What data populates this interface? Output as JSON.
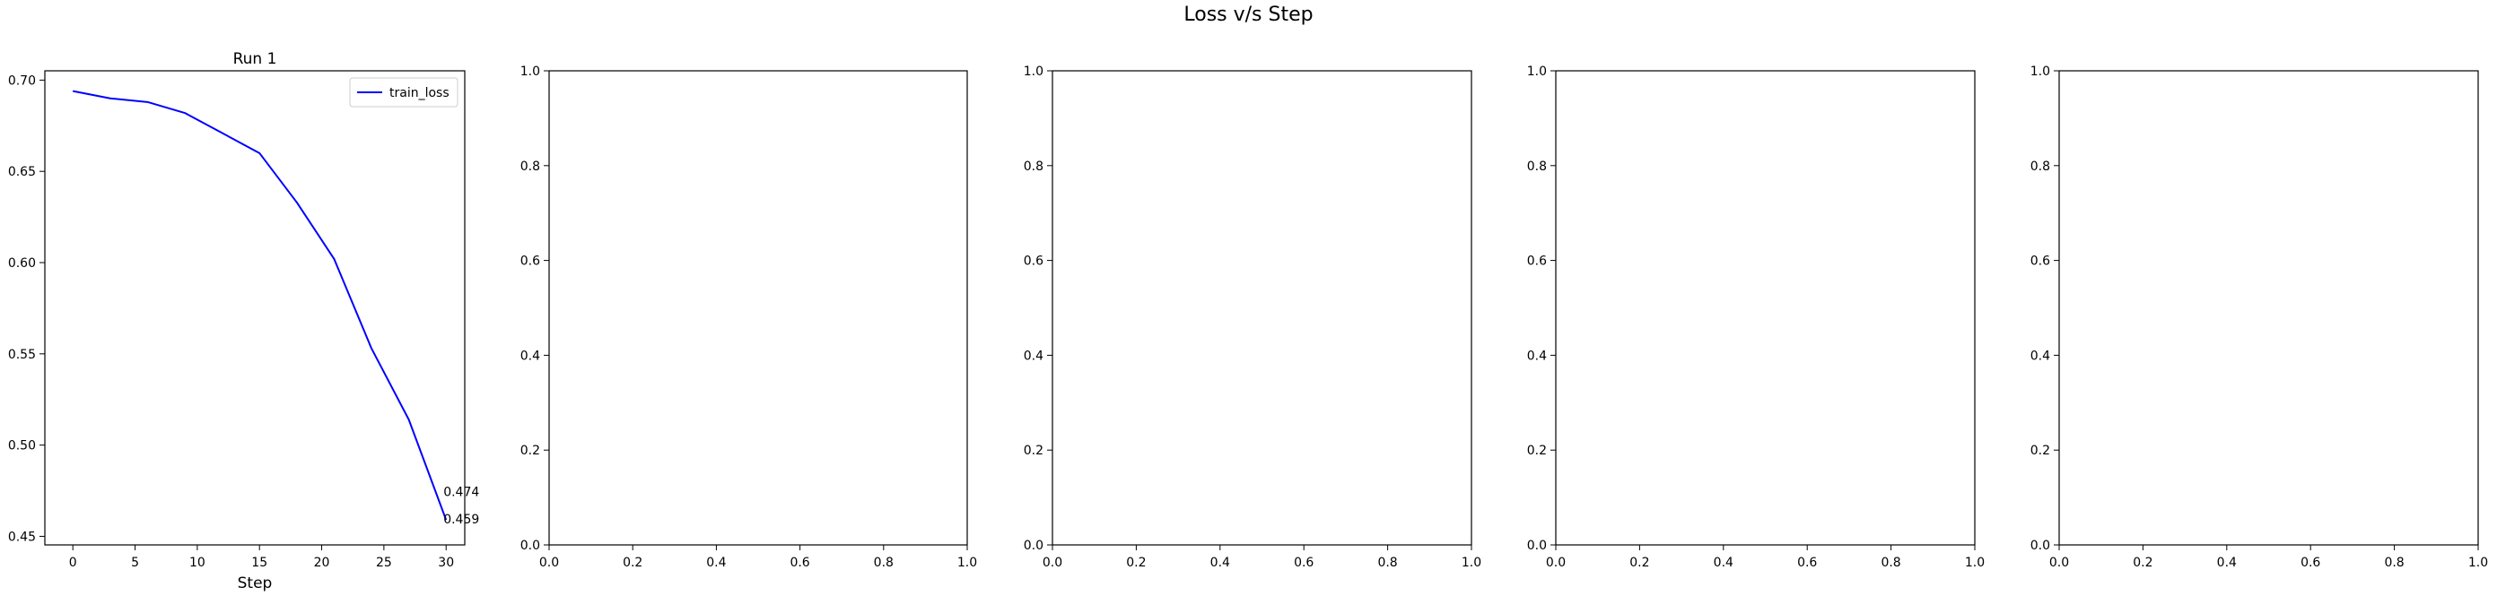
{
  "figure": {
    "title": "Loss v/s Step"
  },
  "chart_data": [
    {
      "type": "line",
      "title": "Run 1",
      "xlabel": "Step",
      "ylabel": "",
      "xlim": [
        -2.25,
        31.5
      ],
      "ylim": [
        0.4453,
        0.7051
      ],
      "xticks": [
        0,
        5,
        10,
        15,
        20,
        25,
        30
      ],
      "xtick_labels": [
        "0",
        "5",
        "10",
        "15",
        "20",
        "25",
        "30"
      ],
      "yticks": [
        0.45,
        0.5,
        0.55,
        0.6,
        0.65,
        0.7
      ],
      "ytick_labels": [
        "0.45",
        "0.50",
        "0.55",
        "0.60",
        "0.65",
        "0.70"
      ],
      "legend": {
        "position": "upper right",
        "entries": [
          "train_loss"
        ]
      },
      "series": [
        {
          "name": "train_loss",
          "color": "#0000ff",
          "x": [
            0,
            3,
            6,
            9,
            12,
            15,
            18,
            21,
            24,
            27,
            30
          ],
          "y": [
            0.694,
            0.69,
            0.688,
            0.682,
            0.671,
            0.66,
            0.633,
            0.602,
            0.553,
            0.514,
            0.459
          ]
        }
      ],
      "annotations": [
        {
          "text": "0.474",
          "x": 30,
          "y": 0.474
        },
        {
          "text": "0.459",
          "x": 30,
          "y": 0.459
        }
      ]
    },
    {
      "type": "line",
      "title": "",
      "xlabel": "",
      "xlim": [
        0,
        1
      ],
      "ylim": [
        0,
        1
      ],
      "xticks": [
        0,
        0.2,
        0.4,
        0.6,
        0.8,
        1.0
      ],
      "xtick_labels": [
        "0.0",
        "0.2",
        "0.4",
        "0.6",
        "0.8",
        "1.0"
      ],
      "yticks": [
        0,
        0.2,
        0.4,
        0.6,
        0.8,
        1.0
      ],
      "ytick_labels": [
        "0.0",
        "0.2",
        "0.4",
        "0.6",
        "0.8",
        "1.0"
      ],
      "series": []
    },
    {
      "type": "line",
      "title": "",
      "xlabel": "",
      "xlim": [
        0,
        1
      ],
      "ylim": [
        0,
        1
      ],
      "xticks": [
        0,
        0.2,
        0.4,
        0.6,
        0.8,
        1.0
      ],
      "xtick_labels": [
        "0.0",
        "0.2",
        "0.4",
        "0.6",
        "0.8",
        "1.0"
      ],
      "yticks": [
        0,
        0.2,
        0.4,
        0.6,
        0.8,
        1.0
      ],
      "ytick_labels": [
        "0.0",
        "0.2",
        "0.4",
        "0.6",
        "0.8",
        "1.0"
      ],
      "series": []
    },
    {
      "type": "line",
      "title": "",
      "xlabel": "",
      "xlim": [
        0,
        1
      ],
      "ylim": [
        0,
        1
      ],
      "xticks": [
        0,
        0.2,
        0.4,
        0.6,
        0.8,
        1.0
      ],
      "xtick_labels": [
        "0.0",
        "0.2",
        "0.4",
        "0.6",
        "0.8",
        "1.0"
      ],
      "yticks": [
        0,
        0.2,
        0.4,
        0.6,
        0.8,
        1.0
      ],
      "ytick_labels": [
        "0.0",
        "0.2",
        "0.4",
        "0.6",
        "0.8",
        "1.0"
      ],
      "series": []
    },
    {
      "type": "line",
      "title": "",
      "xlabel": "",
      "xlim": [
        0,
        1
      ],
      "ylim": [
        0,
        1
      ],
      "xticks": [
        0,
        0.2,
        0.4,
        0.6,
        0.8,
        1.0
      ],
      "xtick_labels": [
        "0.0",
        "0.2",
        "0.4",
        "0.6",
        "0.8",
        "1.0"
      ],
      "yticks": [
        0,
        0.2,
        0.4,
        0.6,
        0.8,
        1.0
      ],
      "ytick_labels": [
        "0.0",
        "0.2",
        "0.4",
        "0.6",
        "0.8",
        "1.0"
      ],
      "series": []
    }
  ]
}
